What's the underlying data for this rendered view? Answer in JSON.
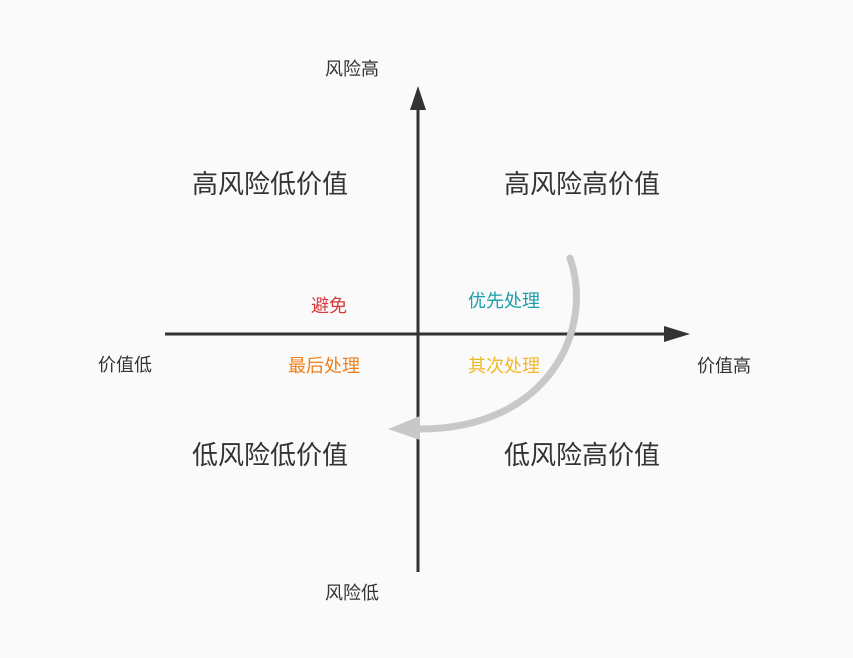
{
  "axes": {
    "risk_high": "风险高",
    "risk_low": "风险低",
    "value_low": "价值低",
    "value_high": "价值高"
  },
  "quadrants": {
    "top_left": "高风险低价值",
    "top_right": "高风险高价值",
    "bottom_left": "低风险低价值",
    "bottom_right": "低风险高价值"
  },
  "actions": {
    "avoid": {
      "label": "避免",
      "color": "#d9383a"
    },
    "priority": {
      "label": "优先处理",
      "color": "#1a9fa8"
    },
    "last": {
      "label": "最后处理",
      "color": "#f07f1a"
    },
    "secondary": {
      "label": "其次处理",
      "color": "#f0b929"
    }
  },
  "colors": {
    "axis": "#333333",
    "flow_arrow": "#c8c8c8",
    "background": "#fafafa"
  }
}
